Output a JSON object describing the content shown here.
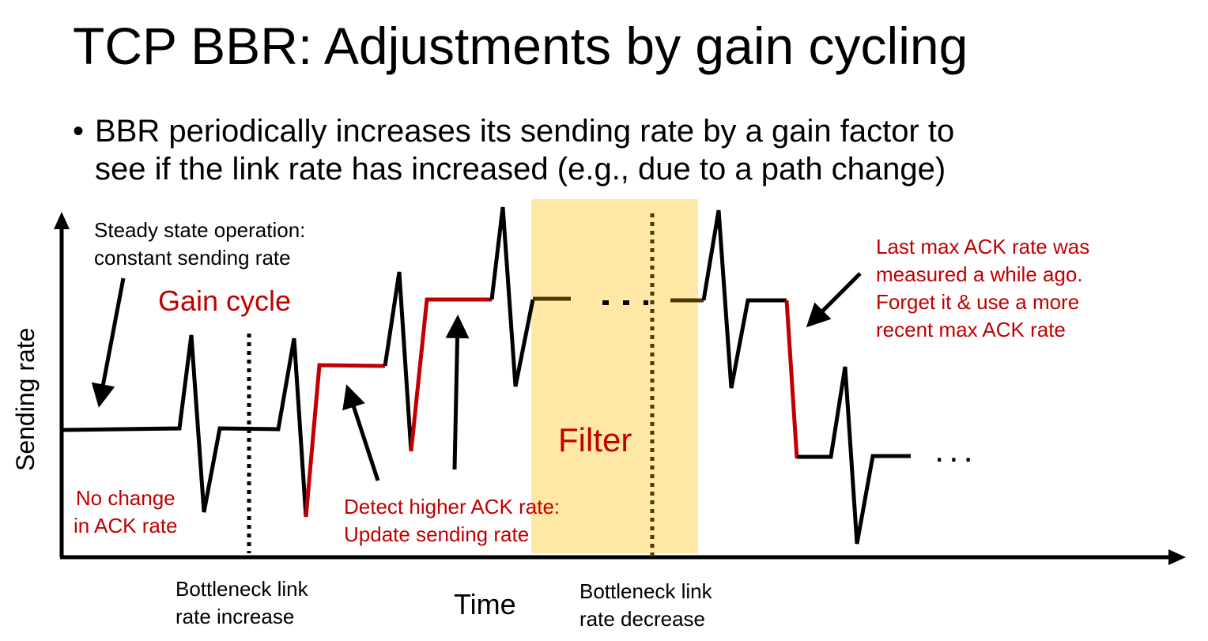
{
  "slide": {
    "title": "TCP BBR: Adjustments by gain cycling",
    "bullet": {
      "marker": "•",
      "line1": "BBR periodically increases its sending rate by a gain factor to",
      "line2": "see if the link rate has increased (e.g., due to a path change)"
    }
  },
  "diagram": {
    "axes": {
      "ylabel": "Sending rate",
      "xlabel": "Time"
    },
    "annotations": {
      "steady_state": {
        "line1": "Steady state operation:",
        "line2": "constant sending rate"
      },
      "gain_cycle": "Gain cycle",
      "no_change": {
        "line1": "No change",
        "line2": "in ACK rate"
      },
      "detect_higher": {
        "line1": "Detect higher ACK rate:",
        "line2": "Update sending rate"
      },
      "filter": "Filter",
      "last_max": {
        "line1": "Last max ACK rate was",
        "line2": "measured a while ago.",
        "line3": "Forget it & use a more",
        "line4": "recent max ACK rate"
      },
      "bottleneck_increase": {
        "line1": "Bottleneck link",
        "line2": "rate increase"
      },
      "bottleneck_decrease": {
        "line1": "Bottleneck link",
        "line2": "rate decrease"
      },
      "trailing_ellipsis": "..."
    },
    "colors": {
      "black": "#000000",
      "red": "#c00000",
      "filter_band": "#ffe8a6",
      "faded_dark": "#4a3a00"
    }
  }
}
